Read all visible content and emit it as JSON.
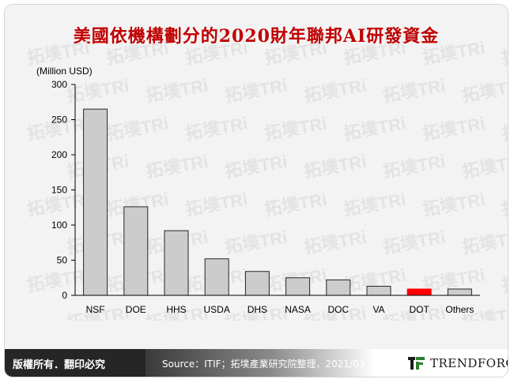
{
  "title": "美國依機構劃分的2020財年聯邦AI研發資金",
  "watermark": {
    "brand_text": "拓墣TRi"
  },
  "chart_data": {
    "type": "bar",
    "unit_label": "(Million USD)",
    "categories": [
      "NSF",
      "DOE",
      "HHS",
      "USDA",
      "DHS",
      "NASA",
      "DOC",
      "VA",
      "DOT",
      "Others"
    ],
    "values": [
      265,
      126,
      92,
      52,
      34,
      25,
      22,
      13,
      9,
      9
    ],
    "highlight_category": "DOT",
    "ylim": [
      0,
      300
    ],
    "yticks": [
      0,
      50,
      100,
      150,
      200,
      250,
      300
    ],
    "colors": {
      "bar": "#cccccc",
      "highlight": "#ff0000",
      "bar_stroke": "#262626"
    }
  },
  "footer": {
    "copyright": "版權所有．翻印必究",
    "source": "Source：ITIF；拓墣產業研究院整理，2021/03",
    "brand": "TRENDFORCE"
  },
  "colors": {
    "title": "#c00000",
    "brand_mark": "#2e7d32"
  }
}
